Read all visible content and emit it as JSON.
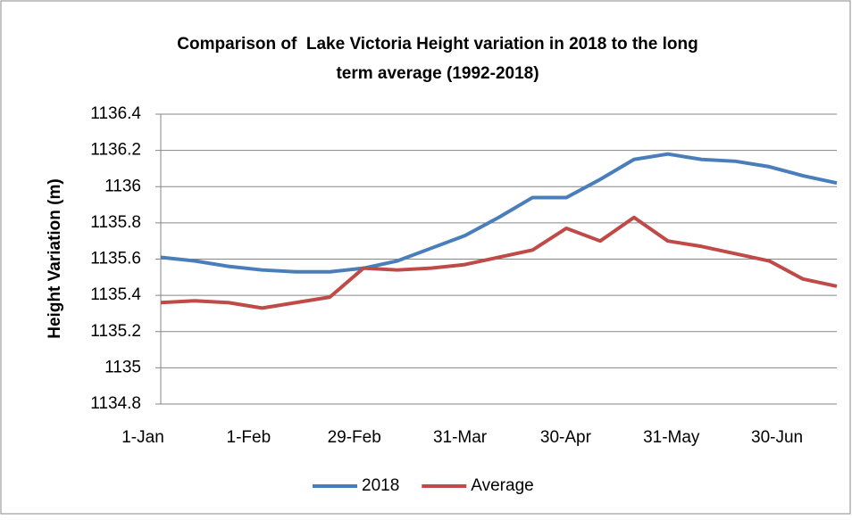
{
  "chart_data": {
    "type": "line",
    "title": [
      "Comparison of  Lake Victoria Height variation in 2018 to the long",
      "term average (1992-2018)"
    ],
    "y_label": "Height Variation (m)",
    "categories": [
      "1-Jan",
      null,
      null,
      "1-Feb",
      null,
      null,
      "29-Feb",
      null,
      null,
      "31-Mar",
      null,
      null,
      "30-Apr",
      null,
      null,
      "31-May",
      null,
      null,
      "30-Jun",
      null,
      null
    ],
    "series": [
      {
        "name": "2018",
        "color": "#4a7ebb",
        "values": [
          1135.61,
          1135.59,
          1135.56,
          1135.54,
          1135.53,
          1135.53,
          1135.55,
          1135.59,
          1135.66,
          1135.73,
          1135.83,
          1135.94,
          1135.94,
          1136.04,
          1136.15,
          1136.18,
          1136.15,
          1136.14,
          1136.11,
          1136.06,
          1136.02
        ]
      },
      {
        "name": "Average",
        "color": "#be4b48",
        "values": [
          1135.36,
          1135.37,
          1135.36,
          1135.33,
          1135.36,
          1135.39,
          1135.55,
          1135.54,
          1135.55,
          1135.57,
          1135.61,
          1135.65,
          1135.77,
          1135.7,
          1135.83,
          1135.7,
          1135.67,
          1135.63,
          1135.59,
          1135.49,
          1135.45
        ]
      }
    ],
    "ylim": [
      1134.8,
      1136.4
    ],
    "yticks": [
      1134.8,
      1135,
      1135.2,
      1135.4,
      1135.6,
      1135.8,
      1136,
      1136.2,
      1136.4
    ],
    "grid": true,
    "legend": "bottom"
  }
}
